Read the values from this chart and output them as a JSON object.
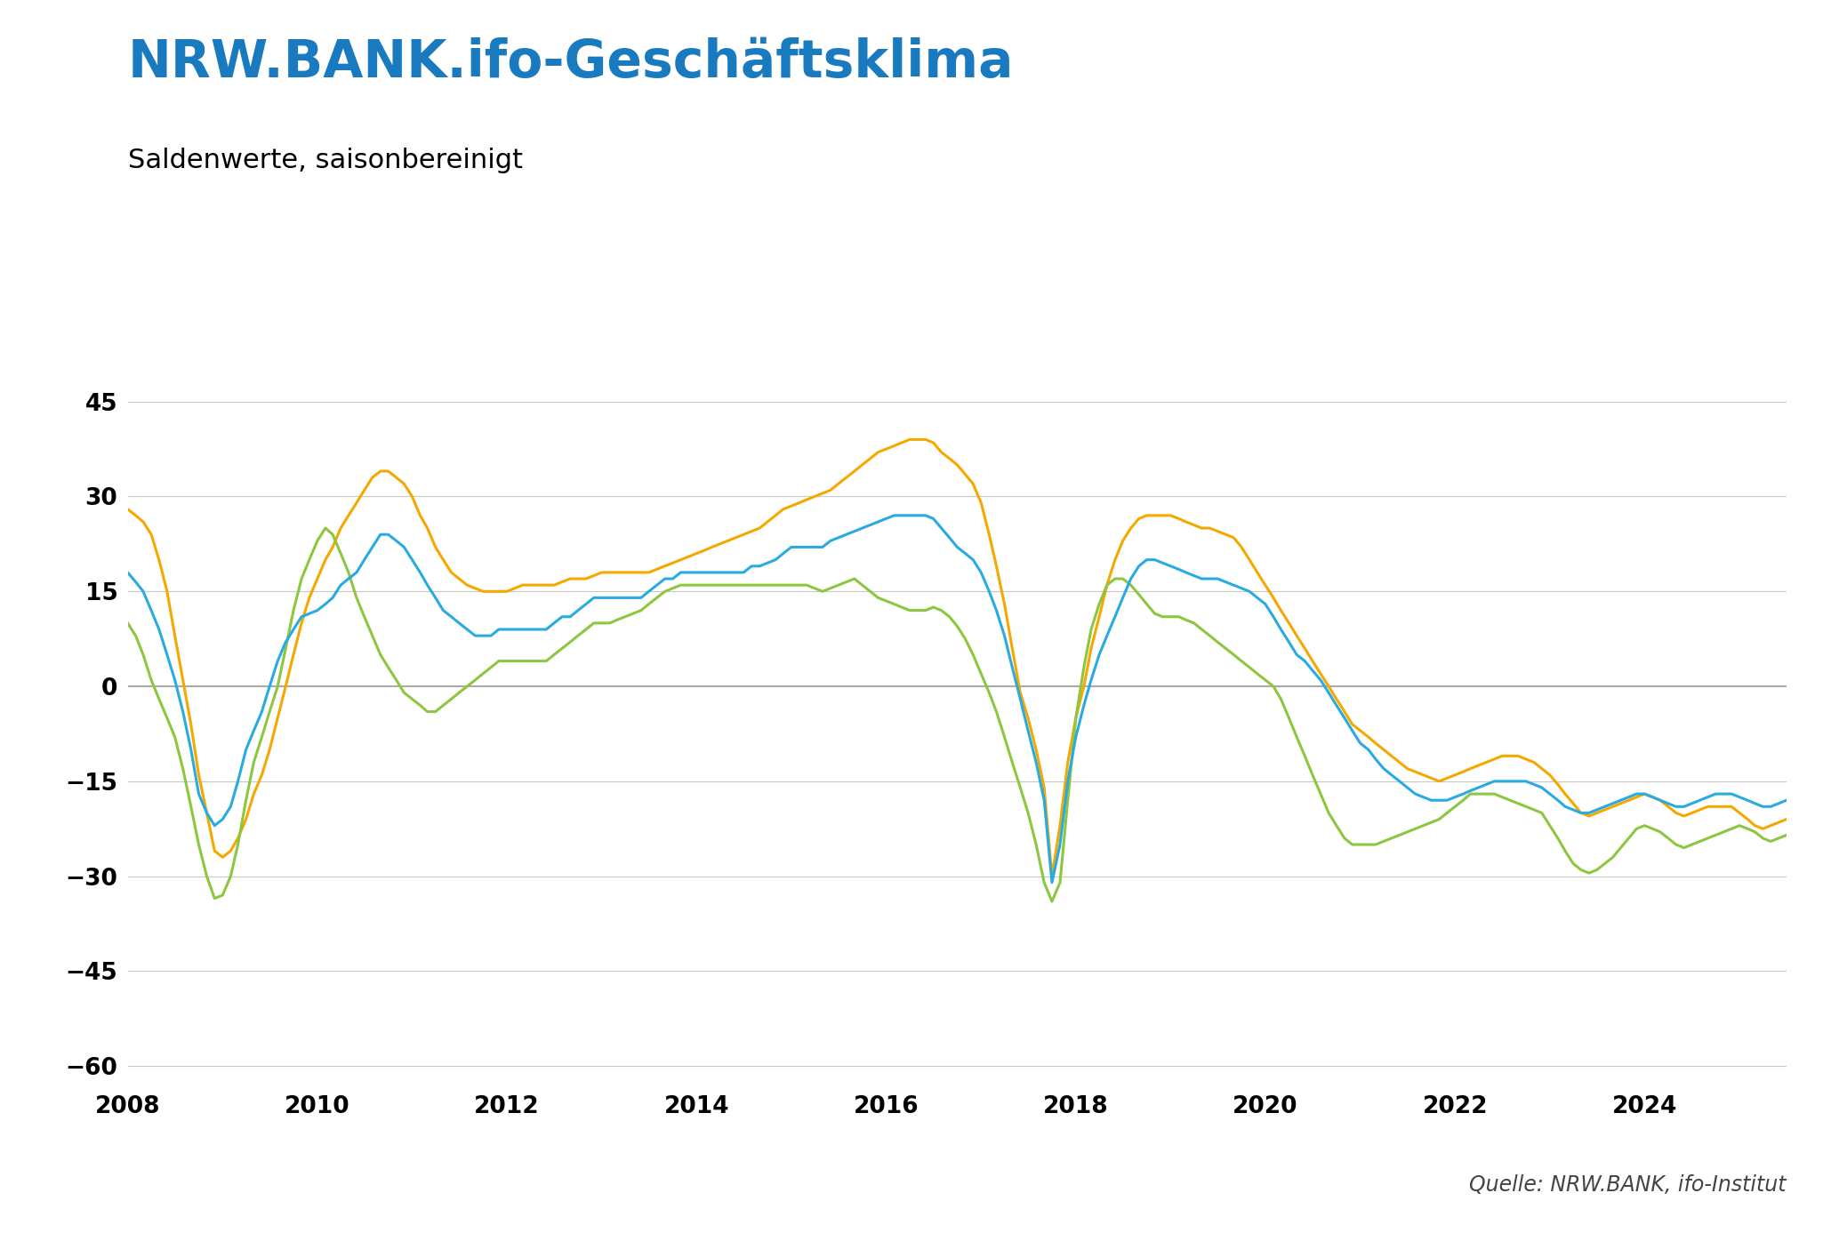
{
  "title": "NRW.BANK.ifo-Geschäftsklima",
  "subtitle": "Saldenwerte, saisonbereinigt",
  "source": "Quelle: NRW.BANK, ifo-Institut",
  "title_color": "#1a7abf",
  "subtitle_color": "#000000",
  "line_colors": {
    "Klima": "#29abe2",
    "Lage": "#f5a800",
    "Erwartungen": "#8dc63f"
  },
  "line_width": 2.2,
  "ylim": [
    -63,
    50
  ],
  "yticks": [
    45,
    30,
    15,
    0,
    -15,
    -30,
    -45,
    -60
  ],
  "background_color": "#ffffff",
  "grid_color": "#c8c8c8",
  "zero_line_color": "#aaaaaa",
  "xtick_labels": [
    "2008",
    "2010",
    "2012",
    "2014",
    "2016",
    "2018",
    "2020",
    "2022",
    "2024"
  ],
  "klima": [
    18.0,
    16.5,
    15.0,
    12.0,
    9.0,
    5.0,
    1.0,
    -4.0,
    -10.0,
    -17.0,
    -20.0,
    -22.0,
    -21.0,
    -19.0,
    -15.0,
    -10.0,
    -7.0,
    -4.0,
    0.0,
    4.0,
    7.0,
    9.0,
    11.0,
    11.5,
    12.0,
    13.0,
    14.0,
    16.0,
    17.0,
    18.0,
    20.0,
    22.0,
    24.0,
    24.0,
    23.0,
    22.0,
    20.0,
    18.0,
    16.0,
    14.0,
    12.0,
    11.0,
    10.0,
    9.0,
    8.0,
    8.0,
    8.0,
    9.0,
    9.0,
    9.0,
    9.0,
    9.0,
    9.0,
    9.0,
    10.0,
    11.0,
    11.0,
    12.0,
    13.0,
    14.0,
    14.0,
    14.0,
    14.0,
    14.0,
    14.0,
    14.0,
    15.0,
    16.0,
    17.0,
    17.0,
    18.0,
    18.0,
    18.0,
    18.0,
    18.0,
    18.0,
    18.0,
    18.0,
    18.0,
    19.0,
    19.0,
    19.5,
    20.0,
    21.0,
    22.0,
    22.0,
    22.0,
    22.0,
    22.0,
    23.0,
    23.5,
    24.0,
    24.5,
    25.0,
    25.5,
    26.0,
    26.5,
    27.0,
    27.0,
    27.0,
    27.0,
    27.0,
    26.5,
    25.0,
    23.5,
    22.0,
    21.0,
    20.0,
    18.0,
    15.0,
    12.0,
    8.0,
    3.0,
    -2.0,
    -7.0,
    -12.0,
    -18.0,
    -31.0,
    -25.0,
    -15.0,
    -8.0,
    -3.0,
    1.0,
    5.0,
    8.0,
    11.0,
    14.0,
    17.0,
    19.0,
    20.0,
    20.0,
    19.5,
    19.0,
    18.5,
    18.0,
    17.5,
    17.0,
    17.0,
    17.0,
    16.5,
    16.0,
    15.5,
    15.0,
    14.0,
    13.0,
    11.0,
    9.0,
    7.0,
    5.0,
    4.0,
    2.5,
    1.0,
    -1.0,
    -3.0,
    -5.0,
    -7.0,
    -9.0,
    -10.0,
    -11.5,
    -13.0,
    -14.0,
    -15.0,
    -16.0,
    -17.0,
    -17.5,
    -18.0,
    -18.0,
    -18.0,
    -17.5,
    -17.0,
    -16.5,
    -16.0,
    -15.5,
    -15.0,
    -15.0,
    -15.0,
    -15.0,
    -15.0,
    -15.5,
    -16.0,
    -17.0,
    -18.0,
    -19.0,
    -19.5,
    -20.0,
    -20.0,
    -19.5,
    -19.0,
    -18.5,
    -18.0,
    -17.5,
    -17.0,
    -17.0,
    -17.5,
    -18.0,
    -18.5,
    -19.0,
    -19.0,
    -18.5,
    -18.0,
    -17.5,
    -17.0,
    -17.0,
    -17.0,
    -17.5,
    -18.0,
    -18.5,
    -19.0,
    -19.0,
    -18.5,
    -18.0,
    -18.0
  ],
  "lage": [
    28.0,
    27.0,
    26.0,
    24.0,
    20.0,
    15.0,
    8.0,
    1.0,
    -6.0,
    -14.0,
    -20.0,
    -26.0,
    -27.0,
    -26.0,
    -24.0,
    -21.0,
    -17.0,
    -14.0,
    -10.0,
    -5.0,
    0.0,
    5.0,
    10.0,
    14.0,
    17.0,
    20.0,
    22.0,
    25.0,
    27.0,
    29.0,
    31.0,
    33.0,
    34.0,
    34.0,
    33.0,
    32.0,
    30.0,
    27.0,
    25.0,
    22.0,
    20.0,
    18.0,
    17.0,
    16.0,
    15.5,
    15.0,
    15.0,
    15.0,
    15.0,
    15.5,
    16.0,
    16.0,
    16.0,
    16.0,
    16.0,
    16.5,
    17.0,
    17.0,
    17.0,
    17.5,
    18.0,
    18.0,
    18.0,
    18.0,
    18.0,
    18.0,
    18.0,
    18.5,
    19.0,
    19.5,
    20.0,
    20.5,
    21.0,
    21.5,
    22.0,
    22.5,
    23.0,
    23.5,
    24.0,
    24.5,
    25.0,
    26.0,
    27.0,
    28.0,
    28.5,
    29.0,
    29.5,
    30.0,
    30.5,
    31.0,
    32.0,
    33.0,
    34.0,
    35.0,
    36.0,
    37.0,
    37.5,
    38.0,
    38.5,
    39.0,
    39.0,
    39.0,
    38.5,
    37.0,
    36.0,
    35.0,
    33.5,
    32.0,
    29.0,
    24.0,
    19.0,
    13.0,
    6.0,
    -1.0,
    -5.0,
    -10.0,
    -16.0,
    -30.0,
    -22.0,
    -12.0,
    -5.0,
    0.0,
    6.0,
    11.0,
    16.0,
    20.0,
    23.0,
    25.0,
    26.5,
    27.0,
    27.0,
    27.0,
    27.0,
    26.5,
    26.0,
    25.5,
    25.0,
    25.0,
    24.5,
    24.0,
    23.5,
    22.0,
    20.0,
    18.0,
    16.0,
    14.0,
    12.0,
    10.0,
    8.0,
    6.0,
    4.0,
    2.0,
    0.0,
    -2.0,
    -4.0,
    -6.0,
    -7.0,
    -8.0,
    -9.0,
    -10.0,
    -11.0,
    -12.0,
    -13.0,
    -13.5,
    -14.0,
    -14.5,
    -15.0,
    -14.5,
    -14.0,
    -13.5,
    -13.0,
    -12.5,
    -12.0,
    -11.5,
    -11.0,
    -11.0,
    -11.0,
    -11.5,
    -12.0,
    -13.0,
    -14.0,
    -15.5,
    -17.0,
    -18.5,
    -20.0,
    -20.5,
    -20.0,
    -19.5,
    -19.0,
    -18.5,
    -18.0,
    -17.5,
    -17.0,
    -17.5,
    -18.0,
    -19.0,
    -20.0,
    -20.5,
    -20.0,
    -19.5,
    -19.0,
    -19.0,
    -19.0,
    -19.0,
    -20.0,
    -21.0,
    -22.0,
    -22.5,
    -22.0,
    -21.5,
    -21.0,
    -20.5
  ],
  "erwartungen": [
    10.0,
    8.0,
    5.0,
    1.0,
    -2.0,
    -5.0,
    -8.0,
    -13.0,
    -19.0,
    -25.0,
    -30.0,
    -33.5,
    -33.0,
    -30.0,
    -25.0,
    -18.0,
    -12.0,
    -8.0,
    -4.0,
    0.0,
    6.0,
    12.0,
    17.0,
    20.0,
    23.0,
    25.0,
    24.0,
    21.0,
    18.0,
    14.0,
    11.0,
    8.0,
    5.0,
    3.0,
    1.0,
    -1.0,
    -2.0,
    -3.0,
    -4.0,
    -4.0,
    -3.0,
    -2.0,
    -1.0,
    0.0,
    1.0,
    2.0,
    3.0,
    4.0,
    4.0,
    4.0,
    4.0,
    4.0,
    4.0,
    4.0,
    5.0,
    6.0,
    7.0,
    8.0,
    9.0,
    10.0,
    10.0,
    10.0,
    10.5,
    11.0,
    11.5,
    12.0,
    13.0,
    14.0,
    15.0,
    15.5,
    16.0,
    16.0,
    16.0,
    16.0,
    16.0,
    16.0,
    16.0,
    16.0,
    16.0,
    16.0,
    16.0,
    16.0,
    16.0,
    16.0,
    16.0,
    16.0,
    16.0,
    15.5,
    15.0,
    15.5,
    16.0,
    16.5,
    17.0,
    16.0,
    15.0,
    14.0,
    13.5,
    13.0,
    12.5,
    12.0,
    12.0,
    12.0,
    12.5,
    12.0,
    11.0,
    9.5,
    7.5,
    5.0,
    2.0,
    -1.0,
    -4.0,
    -8.0,
    -12.0,
    -16.0,
    -20.0,
    -25.0,
    -31.0,
    -34.0,
    -31.0,
    -18.0,
    -5.0,
    3.0,
    9.0,
    13.0,
    16.0,
    17.0,
    17.0,
    16.0,
    14.5,
    13.0,
    11.5,
    11.0,
    11.0,
    11.0,
    10.5,
    10.0,
    9.0,
    8.0,
    7.0,
    6.0,
    5.0,
    4.0,
    3.0,
    2.0,
    1.0,
    0.0,
    -2.0,
    -5.0,
    -8.0,
    -11.0,
    -14.0,
    -17.0,
    -20.0,
    -22.0,
    -24.0,
    -25.0,
    -25.0,
    -25.0,
    -25.0,
    -24.5,
    -24.0,
    -23.5,
    -23.0,
    -22.5,
    -22.0,
    -21.5,
    -21.0,
    -20.0,
    -19.0,
    -18.0,
    -17.0,
    -17.0,
    -17.0,
    -17.0,
    -17.5,
    -18.0,
    -18.5,
    -19.0,
    -19.5,
    -20.0,
    -22.0,
    -24.0,
    -26.0,
    -28.0,
    -29.0,
    -29.5,
    -29.0,
    -28.0,
    -27.0,
    -25.5,
    -24.0,
    -22.5,
    -22.0,
    -22.5,
    -23.0,
    -24.0,
    -25.0,
    -25.5,
    -25.0,
    -24.5,
    -24.0,
    -23.5,
    -23.0,
    -22.5,
    -22.0,
    -22.5,
    -23.0,
    -24.0,
    -24.5,
    -24.0,
    -23.5,
    -23.0
  ]
}
